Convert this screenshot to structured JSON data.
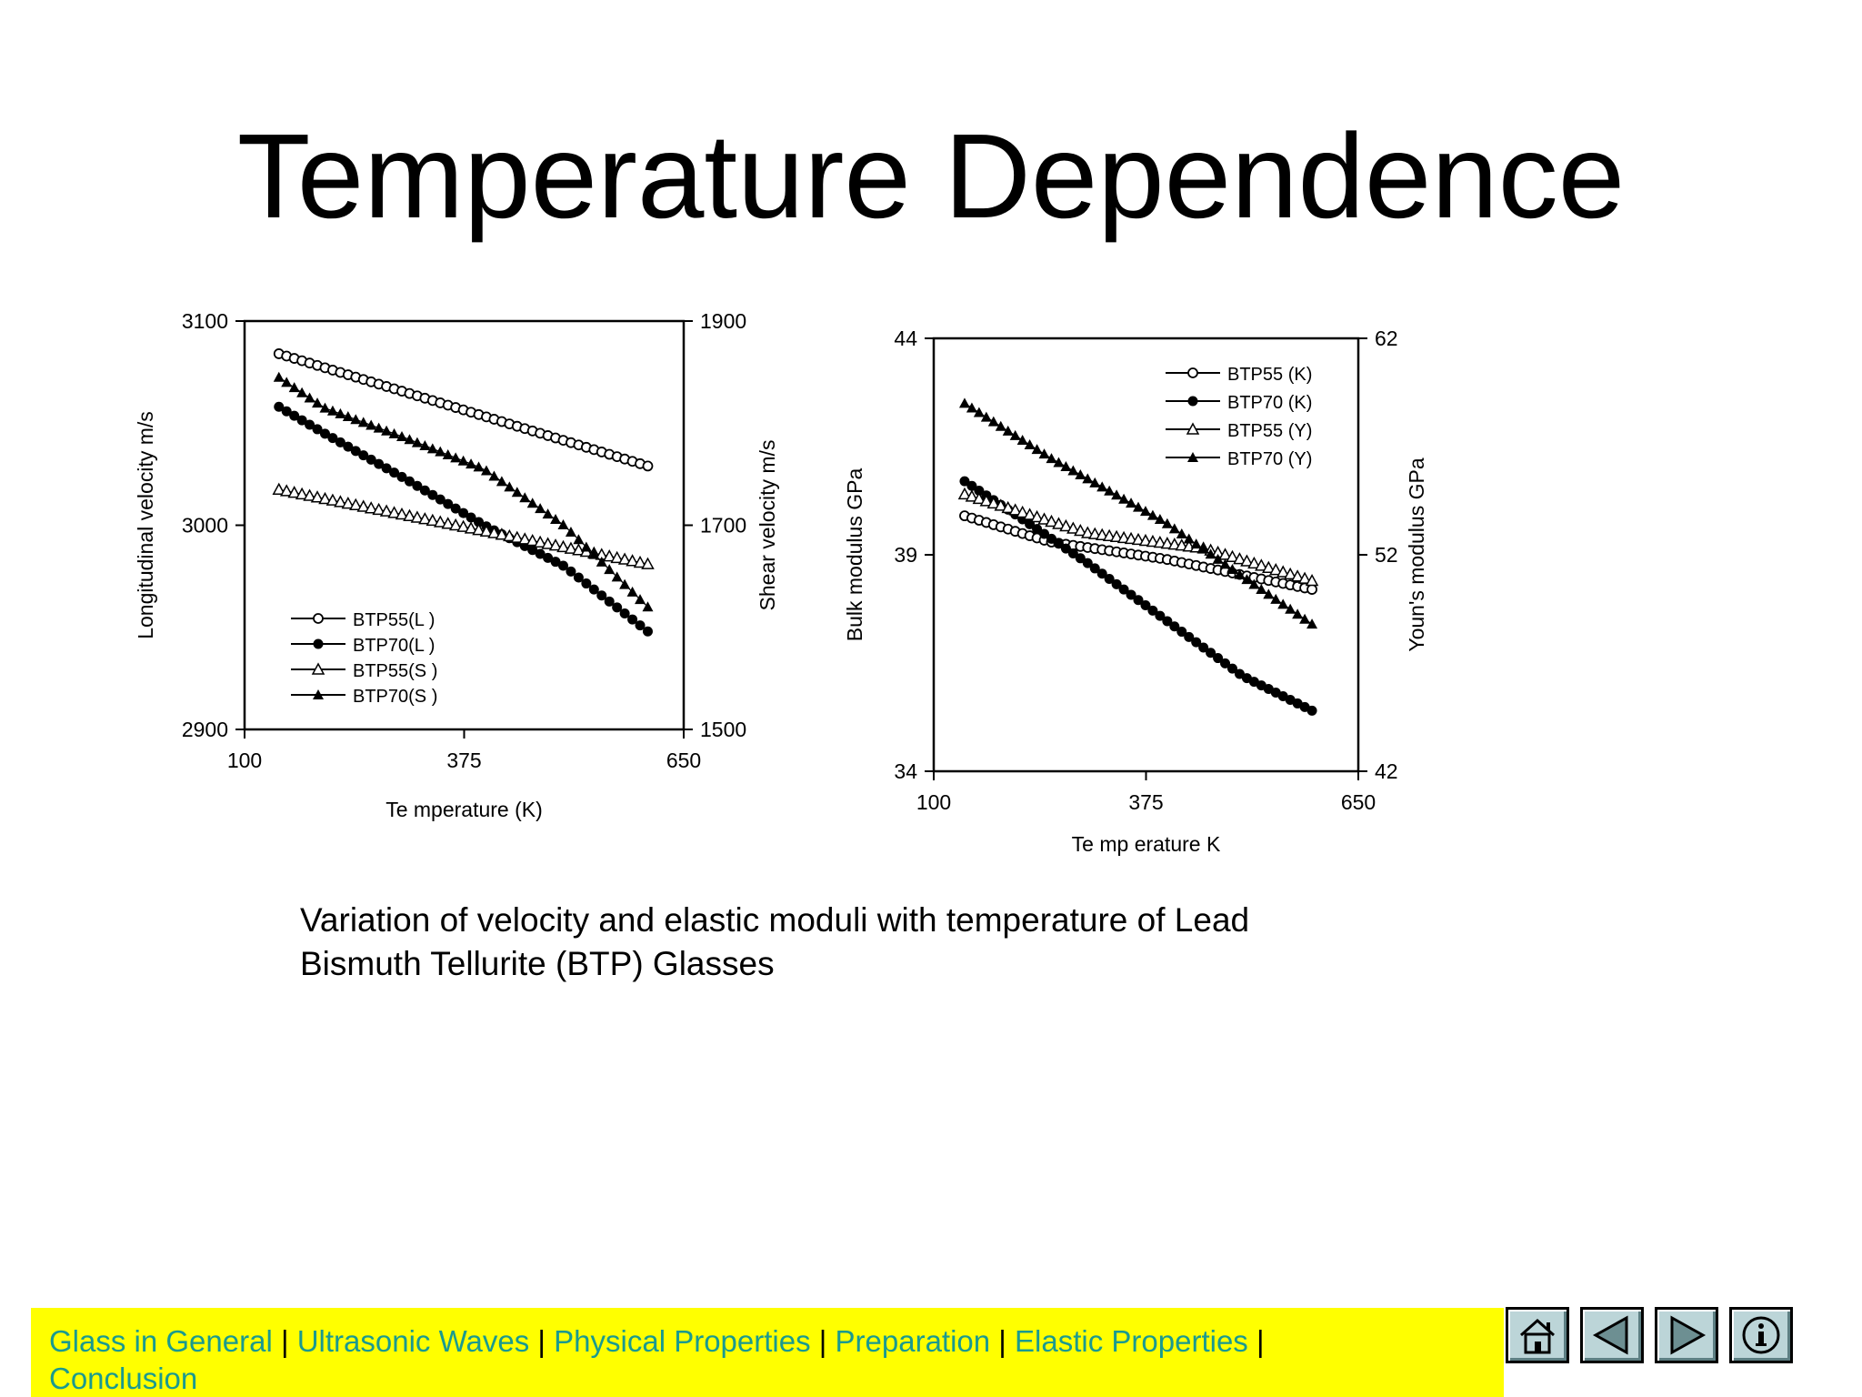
{
  "slide": {
    "title": "Temperature Dependence"
  },
  "caption": {
    "line1": "Variation of velocity and elastic moduli with temperature of Lead",
    "line2": "Bismuth Tellurite  (BTP) Glasses"
  },
  "nav": {
    "links": [
      "Glass in General",
      "Ultrasonic Waves",
      "Physical Properties",
      "Preparation",
      "Elastic Properties",
      "Conclusion"
    ],
    "link_color": "#1a9a8f",
    "bar_color": "#ffff00",
    "buttons": [
      {
        "icon": "home-icon"
      },
      {
        "icon": "previous-icon"
      },
      {
        "icon": "next-icon"
      },
      {
        "icon": "info-icon"
      }
    ]
  },
  "chart_data": [
    {
      "type": "scatter",
      "xlabel": "Te mperature  (K)",
      "ylabel": "Longitudinal velocity m/s",
      "y2label": "Shear velocity m/s",
      "xlim": [
        100,
        650
      ],
      "ylim": [
        2900,
        3100
      ],
      "y2lim": [
        1500,
        1900
      ],
      "xticks": [
        "100",
        "375",
        "650"
      ],
      "yticks": [
        "2900",
        "3000",
        "3100"
      ],
      "y2ticks": [
        "1500",
        "1700",
        "1900"
      ],
      "legend_position": "bottom-left",
      "series": [
        {
          "name": "BTP55(L )",
          "marker": "open-circle",
          "axis": "left",
          "x": [
            143,
            605
          ],
          "y": [
            3084,
            3029
          ]
        },
        {
          "name": "BTP70(L )",
          "marker": "filled-circle",
          "axis": "left",
          "x": [
            143,
            200,
            300,
            400,
            500,
            605
          ],
          "y": [
            3058,
            3045,
            3023,
            3000,
            2980,
            2948
          ]
        },
        {
          "name": "BTP55(S )",
          "marker": "open-triangle",
          "axis": "right",
          "x": [
            143,
            605
          ],
          "y": [
            1735,
            1662
          ]
        },
        {
          "name": "BTP70(S )",
          "marker": "filled-triangle",
          "axis": "right",
          "x": [
            143,
            200,
            300,
            400,
            500,
            605
          ],
          "y": [
            1845,
            1815,
            1786,
            1755,
            1700,
            1620
          ]
        }
      ]
    },
    {
      "type": "scatter",
      "xlabel": "Te mp erature  K",
      "ylabel": "Bulk modulus GPa",
      "y2label": "Youn's modulus GPa",
      "xlim": [
        100,
        650
      ],
      "ylim": [
        34,
        44
      ],
      "y2lim": [
        42,
        62
      ],
      "xticks": [
        "100",
        "375",
        "650"
      ],
      "yticks": [
        "34",
        "39",
        "44"
      ],
      "y2ticks": [
        "42",
        "52",
        "62"
      ],
      "legend_position": "top-right",
      "series": [
        {
          "name": "BTP55 (K)",
          "marker": "open-circle",
          "axis": "left",
          "x": [
            140,
            250,
            400,
            590
          ],
          "y": [
            39.9,
            39.3,
            38.9,
            38.2
          ]
        },
        {
          "name": "BTP70 (K)",
          "marker": "filled-circle",
          "axis": "left",
          "x": [
            140,
            200,
            300,
            400,
            500,
            590
          ],
          "y": [
            40.7,
            40.0,
            38.8,
            37.5,
            36.2,
            35.4
          ]
        },
        {
          "name": "BTP55 (Y)",
          "marker": "open-triangle",
          "axis": "right",
          "x": [
            140,
            300,
            450,
            590
          ],
          "y": [
            54.8,
            53.0,
            52.3,
            50.8
          ]
        },
        {
          "name": "BTP70 (Y)",
          "marker": "filled-triangle",
          "axis": "right",
          "x": [
            140,
            250,
            400,
            500,
            590
          ],
          "y": [
            59.0,
            56.5,
            53.5,
            51.0,
            48.8
          ]
        }
      ]
    }
  ]
}
